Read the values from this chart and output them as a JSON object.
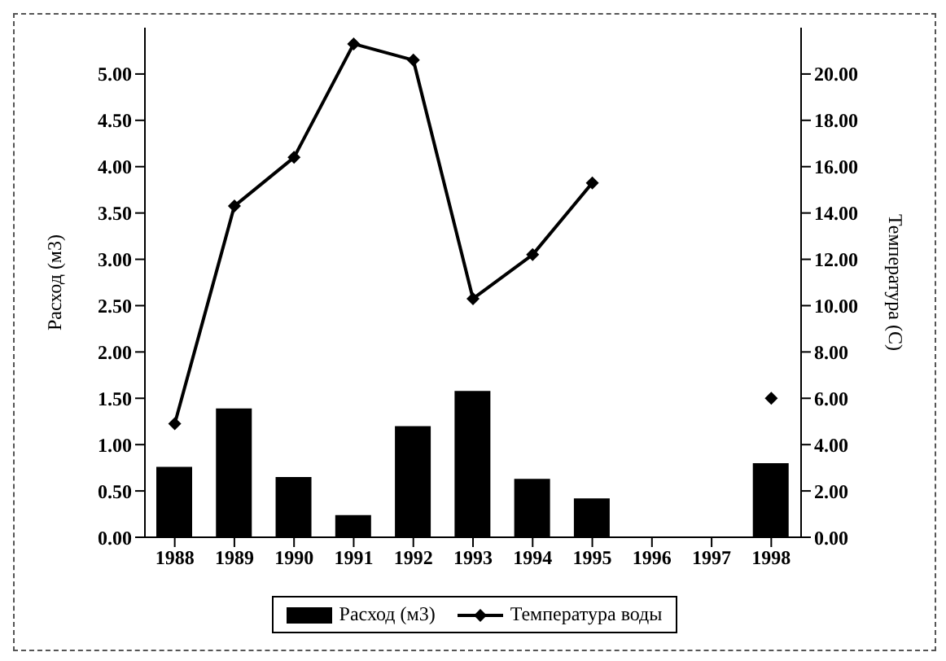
{
  "chart_data": {
    "type": "bar",
    "ylabel": "Расход (м3)",
    "y2label": "Температура (С)",
    "categories": [
      "1988",
      "1989",
      "1990",
      "1991",
      "1992",
      "1993",
      "1994",
      "1995",
      "1996",
      "1997",
      "1998"
    ],
    "series": [
      {
        "name": "Расход (м3)",
        "color": "#000000",
        "values": [
          0.76,
          1.39,
          0.65,
          0.24,
          1.2,
          1.58,
          0.63,
          0.42,
          null,
          null,
          0.8
        ]
      },
      {
        "name": "Температура воды",
        "type": "line",
        "axis": "y2",
        "color": "#000000",
        "marker": "diamond",
        "values": [
          4.9,
          14.3,
          16.4,
          21.3,
          20.6,
          10.3,
          12.2,
          15.3,
          null,
          null,
          6.0
        ]
      }
    ],
    "ylim": [
      0,
      5.5
    ],
    "yticks": [
      {
        "value": 0,
        "label": "0.00"
      },
      {
        "value": 0.5,
        "label": "0.50"
      },
      {
        "value": 1,
        "label": "1.00"
      },
      {
        "value": 1.5,
        "label": "1.50"
      },
      {
        "value": 2,
        "label": "2.00"
      },
      {
        "value": 2.5,
        "label": "2.50"
      },
      {
        "value": 3,
        "label": "3.00"
      },
      {
        "value": 3.5,
        "label": "3.50"
      },
      {
        "value": 4,
        "label": "4.00"
      },
      {
        "value": 4.5,
        "label": "4.50"
      },
      {
        "value": 5,
        "label": "5.00"
      }
    ],
    "y2lim": [
      0,
      22
    ],
    "y2ticks": [
      {
        "value": 0,
        "label": "0.00"
      },
      {
        "value": 2,
        "label": "2.00"
      },
      {
        "value": 4,
        "label": "4.00"
      },
      {
        "value": 6,
        "label": "6.00"
      },
      {
        "value": 8,
        "label": "8.00"
      },
      {
        "value": 10,
        "label": "10.00"
      },
      {
        "value": 12,
        "label": "12.00"
      },
      {
        "value": 14,
        "label": "14.00"
      },
      {
        "value": 16,
        "label": "16.00"
      },
      {
        "value": 18,
        "label": "18.00"
      },
      {
        "value": 20,
        "label": "20.00"
      }
    ],
    "grid": false,
    "legend": "bottom"
  }
}
